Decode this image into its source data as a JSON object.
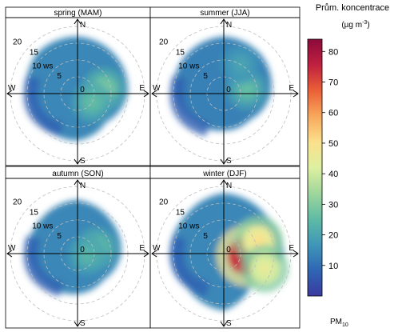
{
  "legend": {
    "title_line1": "Prům. koncentrace",
    "title_unit": "(µg m",
    "title_unit_sup": "-3",
    "title_unit_end": ")",
    "pollutant": "PM",
    "pollutant_sub": "10"
  },
  "axis": {
    "north": "N",
    "south": "S",
    "east": "E",
    "west": "W",
    "origin": "0",
    "ws_suffix": " ws"
  },
  "colors": {
    "scale": [
      "#3a3aa0",
      "#2f66b4",
      "#3f97b8",
      "#5fbba5",
      "#9fd69c",
      "#def0a0",
      "#fbe08c",
      "#f8a85c",
      "#ea6036",
      "#c02040",
      "#8b0a3a"
    ]
  },
  "chart_data": {
    "type": "heatmap",
    "subtype": "polar annulus (pollution rose)",
    "variable": "PM10",
    "colorbar": {
      "min": 0,
      "max": 84,
      "ticks": [
        10,
        20,
        30,
        40,
        50,
        60,
        70,
        80
      ]
    },
    "radial_axis": {
      "label": "ws",
      "ticks": [
        5,
        10,
        15,
        20
      ],
      "max": 20
    },
    "directions": [
      "N",
      "E",
      "S",
      "W"
    ],
    "panels": [
      {
        "title": "spring (MAM)",
        "max_ws_by_direction": {
          "N": 17,
          "NE": 16,
          "E": 15,
          "SE": 12,
          "S": 14,
          "SW": 14,
          "W": 15,
          "NW": 17
        },
        "hotspots": [
          {
            "direction_deg": 80,
            "ws": 8,
            "value": 30
          },
          {
            "direction_deg": 120,
            "ws": 5,
            "value": 26
          }
        ],
        "background_value": 14
      },
      {
        "title": "summer (JJA)",
        "max_ws_by_direction": {
          "N": 17,
          "NE": 16,
          "E": 14,
          "SE": 11,
          "S": 11,
          "SW": 12,
          "W": 15,
          "NW": 16
        },
        "hotspots": [
          {
            "direction_deg": 80,
            "ws": 7,
            "value": 26
          },
          {
            "direction_deg": 30,
            "ws": 10,
            "value": 20
          }
        ],
        "background_value": 13
      },
      {
        "title": "autumn (SON)",
        "max_ws_by_direction": {
          "N": 16,
          "NE": 14,
          "E": 13,
          "SE": 11,
          "S": 12,
          "SW": 13,
          "W": 15,
          "NW": 15
        },
        "hotspots": [
          {
            "direction_deg": 75,
            "ws": 6,
            "value": 28
          },
          {
            "direction_deg": 100,
            "ws": 3,
            "value": 24
          }
        ],
        "background_value": 14
      },
      {
        "title": "winter (DJF)",
        "max_ws_by_direction": {
          "N": 18,
          "NE": 17,
          "E": 18,
          "SE": 12,
          "S": 17,
          "SW": 15,
          "W": 16,
          "NW": 16
        },
        "hotspots": [
          {
            "direction_deg": 95,
            "ws": 7,
            "value": 82
          },
          {
            "direction_deg": 70,
            "ws": 11,
            "value": 50
          },
          {
            "direction_deg": 110,
            "ws": 13,
            "value": 45
          }
        ],
        "background_value": 14
      }
    ]
  }
}
